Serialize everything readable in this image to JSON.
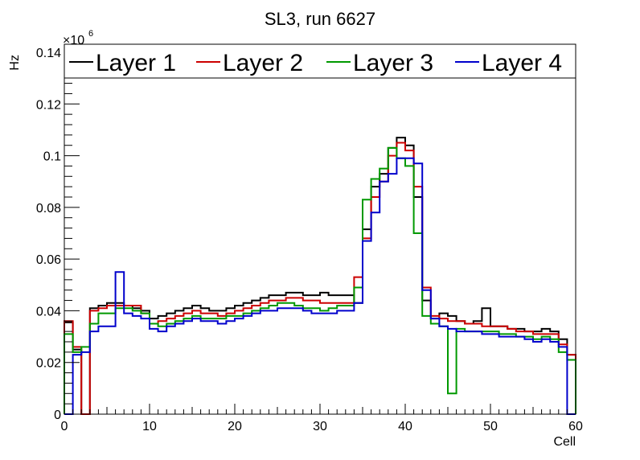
{
  "chart_data": {
    "type": "histogram-step",
    "title": "SL3, run 6627",
    "xlabel": "Cell",
    "ylabel": "Hz",
    "y_multiplier": "×10",
    "y_multiplier_exp": "6",
    "xlim": [
      0,
      60
    ],
    "ylim": [
      0,
      0.14
    ],
    "x_ticks": [
      0,
      10,
      20,
      30,
      40,
      50,
      60
    ],
    "x_tick_labels": [
      "0",
      "10",
      "20",
      "30",
      "40",
      "50",
      "60"
    ],
    "y_ticks": [
      0,
      0.02,
      0.04,
      0.06,
      0.08,
      0.1,
      0.12,
      0.14
    ],
    "y_tick_labels": [
      "0",
      "0.02",
      "0.04",
      "0.06",
      "0.08",
      "0.1",
      "0.12",
      "0.14"
    ],
    "grid": false,
    "legend_position": "top",
    "bins": 60,
    "series": [
      {
        "name": "Layer 1",
        "color": "#000000",
        "values": [
          0.0355,
          0.025,
          0.0,
          0.041,
          0.042,
          0.043,
          0.043,
          0.042,
          0.041,
          0.04,
          0.037,
          0.038,
          0.039,
          0.04,
          0.041,
          0.042,
          0.041,
          0.04,
          0.04,
          0.041,
          0.042,
          0.043,
          0.044,
          0.045,
          0.046,
          0.046,
          0.047,
          0.047,
          0.046,
          0.046,
          0.047,
          0.046,
          0.046,
          0.046,
          0.043,
          0.0715,
          0.088,
          0.093,
          0.103,
          0.107,
          0.104,
          0.084,
          0.044,
          0.037,
          0.039,
          0.038,
          0.036,
          0.035,
          0.036,
          0.041,
          0.034,
          0.034,
          0.033,
          0.033,
          0.032,
          0.032,
          0.033,
          0.032,
          0.029,
          0.023
        ]
      },
      {
        "name": "Layer 2",
        "color": "#cc0000",
        "values": [
          0.036,
          0.026,
          0.0,
          0.04,
          0.041,
          0.042,
          0.042,
          0.042,
          0.042,
          0.039,
          0.035,
          0.036,
          0.037,
          0.038,
          0.039,
          0.04,
          0.039,
          0.039,
          0.038,
          0.039,
          0.04,
          0.041,
          0.042,
          0.043,
          0.044,
          0.044,
          0.045,
          0.045,
          0.044,
          0.044,
          0.043,
          0.043,
          0.043,
          0.043,
          0.053,
          0.068,
          0.084,
          0.09,
          0.1,
          0.105,
          0.102,
          0.088,
          0.049,
          0.038,
          0.037,
          0.036,
          0.036,
          0.035,
          0.035,
          0.034,
          0.034,
          0.034,
          0.033,
          0.032,
          0.032,
          0.031,
          0.031,
          0.031,
          0.027,
          0.023
        ]
      },
      {
        "name": "Layer 3",
        "color": "#009900",
        "values": [
          0.031,
          0.024,
          0.026,
          0.035,
          0.039,
          0.039,
          0.041,
          0.041,
          0.04,
          0.039,
          0.035,
          0.034,
          0.035,
          0.036,
          0.037,
          0.038,
          0.037,
          0.037,
          0.037,
          0.038,
          0.038,
          0.039,
          0.04,
          0.041,
          0.042,
          0.043,
          0.043,
          0.042,
          0.041,
          0.041,
          0.04,
          0.041,
          0.042,
          0.042,
          0.049,
          0.083,
          0.091,
          0.095,
          0.103,
          0.099,
          0.096,
          0.07,
          0.038,
          0.035,
          0.034,
          0.008,
          0.033,
          0.032,
          0.032,
          0.032,
          0.032,
          0.031,
          0.031,
          0.03,
          0.03,
          0.029,
          0.03,
          0.029,
          0.024,
          0.021
        ]
      },
      {
        "name": "Layer 4",
        "color": "#0000cc",
        "values": [
          0.0,
          0.023,
          0.024,
          0.032,
          0.034,
          0.034,
          0.055,
          0.039,
          0.038,
          0.037,
          0.033,
          0.032,
          0.034,
          0.035,
          0.036,
          0.037,
          0.036,
          0.036,
          0.035,
          0.036,
          0.037,
          0.038,
          0.039,
          0.04,
          0.04,
          0.041,
          0.041,
          0.041,
          0.04,
          0.039,
          0.039,
          0.039,
          0.04,
          0.04,
          0.043,
          0.067,
          0.078,
          0.09,
          0.093,
          0.099,
          0.099,
          0.097,
          0.048,
          0.037,
          0.034,
          0.033,
          0.032,
          0.032,
          0.032,
          0.031,
          0.031,
          0.03,
          0.03,
          0.03,
          0.029,
          0.028,
          0.029,
          0.028,
          0.026,
          0.0
        ]
      }
    ]
  }
}
